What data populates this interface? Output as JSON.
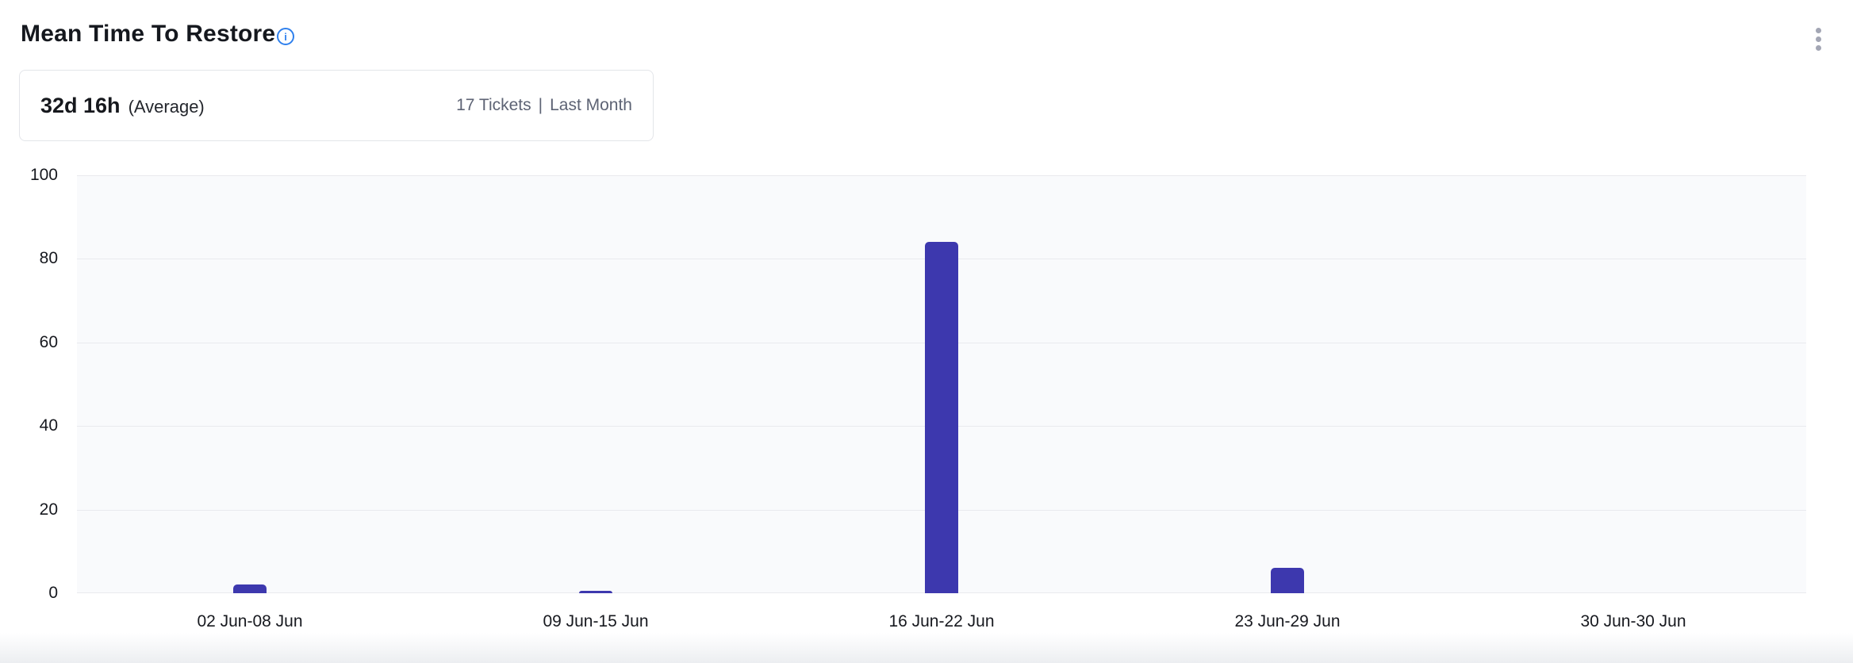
{
  "header": {
    "title": "Mean Time To Restore"
  },
  "icons": {
    "info_glyph": "i",
    "info_name": "info-icon",
    "menu_name": "kebab-menu-icon",
    "info_color": "#2f80ed",
    "menu_color": "#a3a6b4"
  },
  "summary": {
    "value": "32d 16h",
    "value_label": "(Average)",
    "tickets": "17 Tickets",
    "separator": "|",
    "period": "Last Month"
  },
  "chart_data": {
    "type": "bar",
    "title": "Mean Time To Restore",
    "categories": [
      "02 Jun-08 Jun",
      "09 Jun-15 Jun",
      "16 Jun-22 Jun",
      "23 Jun-29 Jun",
      "30 Jun-30 Jun"
    ],
    "values": [
      2,
      0.5,
      84,
      6,
      0
    ],
    "xlabel": "",
    "ylabel": "",
    "ylim": [
      0,
      100
    ],
    "yticks": [
      0,
      20,
      40,
      60,
      80,
      100
    ],
    "grid": true,
    "legend": "none",
    "bar_color": "#3d38ae",
    "plot_background": "#f9fafc",
    "gridline_color": "#e9eaee"
  }
}
